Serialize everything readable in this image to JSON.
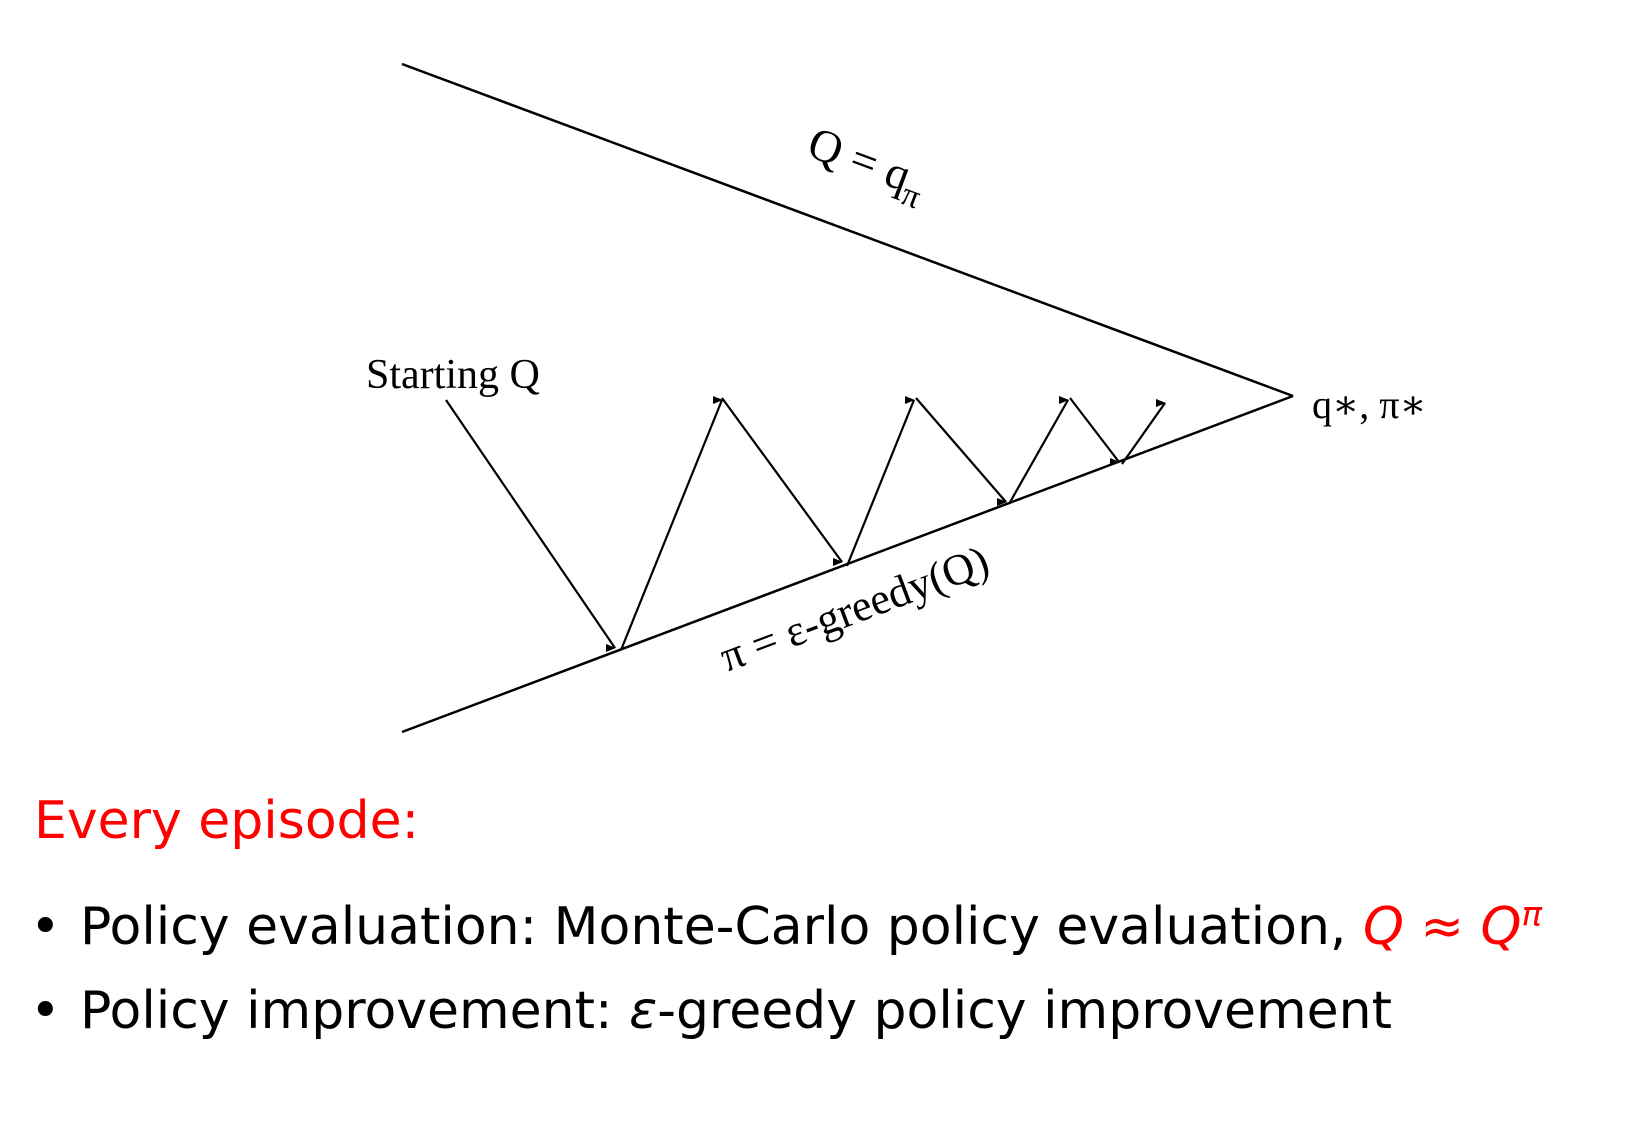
{
  "diagram": {
    "label_top_line": "Q = q",
    "label_top_sub": "π",
    "label_bottom_line": "π = ε-greedy(Q)",
    "label_start": "Starting Q",
    "label_apex": "q∗, π∗"
  },
  "text": {
    "heading": "Every episode:",
    "bullet_glyph": "•",
    "bullets": [
      {
        "prefix": "Policy evaluation: Monte-Carlo policy evaluation, ",
        "math_main": "Q ≈ Q",
        "math_sup": "π"
      },
      {
        "prefix": "Policy improvement: ",
        "math_main": "ε",
        "suffix": "-greedy policy improvement"
      }
    ]
  },
  "colors": {
    "ink": "#000000",
    "accent": "#ff0000"
  }
}
